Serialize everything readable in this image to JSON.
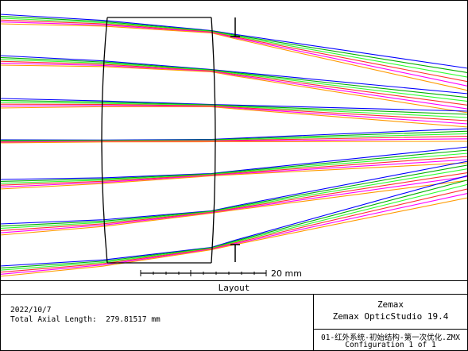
{
  "caption": "Layout",
  "scale_bar_label": "20 mm",
  "info": {
    "date": "2022/10/7",
    "total_axial_length_label": "Total Axial Length:",
    "total_axial_length_value": "279.81517 mm",
    "company": "Zemax",
    "product": "Zemax OpticStudio 19.4",
    "filename": "01-红外系统-初始结构-第一次优化.ZMX",
    "configuration": "Configuration 1 of 1"
  },
  "ray_colors": [
    "#0000ff",
    "#00b000",
    "#30ff30",
    "#ff3030",
    "#ff00ff",
    "#ff9900"
  ],
  "ray_fields": [
    {
      "wavelengths": 6
    },
    {
      "wavelengths": 6
    },
    {
      "wavelengths": 6
    },
    {
      "wavelengths": 6
    },
    {
      "wavelengths": 6
    },
    {
      "wavelengths": 6
    },
    {
      "wavelengths": 6
    }
  ]
}
